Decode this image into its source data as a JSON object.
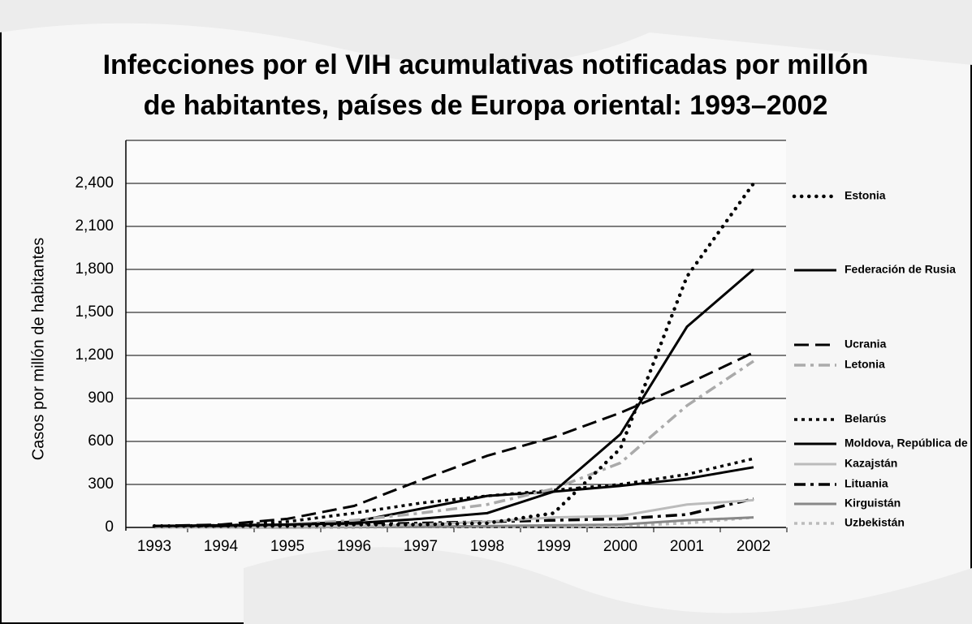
{
  "chart_data": {
    "type": "line",
    "title": [
      "Infecciones por el VIH acumulativas notificadas por millón",
      "de habitantes, países de Europa oriental: 1993–2002"
    ],
    "y_label": "Casos por millón de habitantes",
    "categories": [
      "1993",
      "1994",
      "1995",
      "1996",
      "1997",
      "1998",
      "1999",
      "2000",
      "2001",
      "2002"
    ],
    "ylim": [
      0,
      2700
    ],
    "yticks": [
      0,
      300,
      600,
      900,
      {
        "value": 1200,
        "label": "1,200"
      },
      {
        "value": 1500,
        "label": "1,500"
      },
      {
        "value": 1800,
        "label": "1,800"
      },
      {
        "value": 2100,
        "label": "2,100"
      },
      {
        "value": 2400,
        "label": "2,400"
      }
    ],
    "grid": true,
    "legend": "right",
    "series": [
      {
        "name": "Estonia",
        "color": "#000000",
        "style": "dotted-bold",
        "values": [
          10,
          10,
          10,
          20,
          20,
          30,
          100,
          550,
          1750,
          2400
        ]
      },
      {
        "name": "Federación de Rusia",
        "color": "#000000",
        "style": "solid",
        "values": [
          10,
          15,
          20,
          30,
          60,
          100,
          250,
          650,
          1400,
          1800
        ]
      },
      {
        "name": "Ucrania",
        "color": "#000000",
        "style": "dashed",
        "values": [
          10,
          20,
          60,
          150,
          330,
          500,
          630,
          800,
          1000,
          1220
        ]
      },
      {
        "name": "Letonia",
        "color": "#aaaaaa",
        "style": "dashdot",
        "values": [
          10,
          15,
          20,
          50,
          100,
          160,
          270,
          450,
          850,
          1160
        ]
      },
      {
        "name": "Belarús",
        "color": "#000000",
        "style": "dotted",
        "values": [
          10,
          10,
          40,
          100,
          170,
          220,
          260,
          300,
          370,
          480
        ]
      },
      {
        "name": "Moldova, República de",
        "color": "#000000",
        "style": "solid",
        "values": [
          10,
          10,
          20,
          40,
          130,
          220,
          250,
          290,
          340,
          420
        ]
      },
      {
        "name": "Kazajstán",
        "color": "#bbbbbb",
        "style": "solid",
        "values": [
          0,
          0,
          5,
          10,
          20,
          40,
          70,
          80,
          160,
          190
        ]
      },
      {
        "name": "Lituania",
        "color": "#000000",
        "style": "dashdot",
        "values": [
          10,
          10,
          15,
          20,
          30,
          40,
          50,
          60,
          90,
          200
        ]
      },
      {
        "name": "Kirguistán",
        "color": "#888888",
        "style": "solid",
        "values": [
          0,
          0,
          0,
          5,
          5,
          10,
          15,
          20,
          50,
          70
        ]
      },
      {
        "name": "Uzbekistán",
        "color": "#bbbbbb",
        "style": "dotted",
        "values": [
          0,
          0,
          0,
          0,
          5,
          5,
          5,
          10,
          30,
          70
        ]
      }
    ]
  }
}
